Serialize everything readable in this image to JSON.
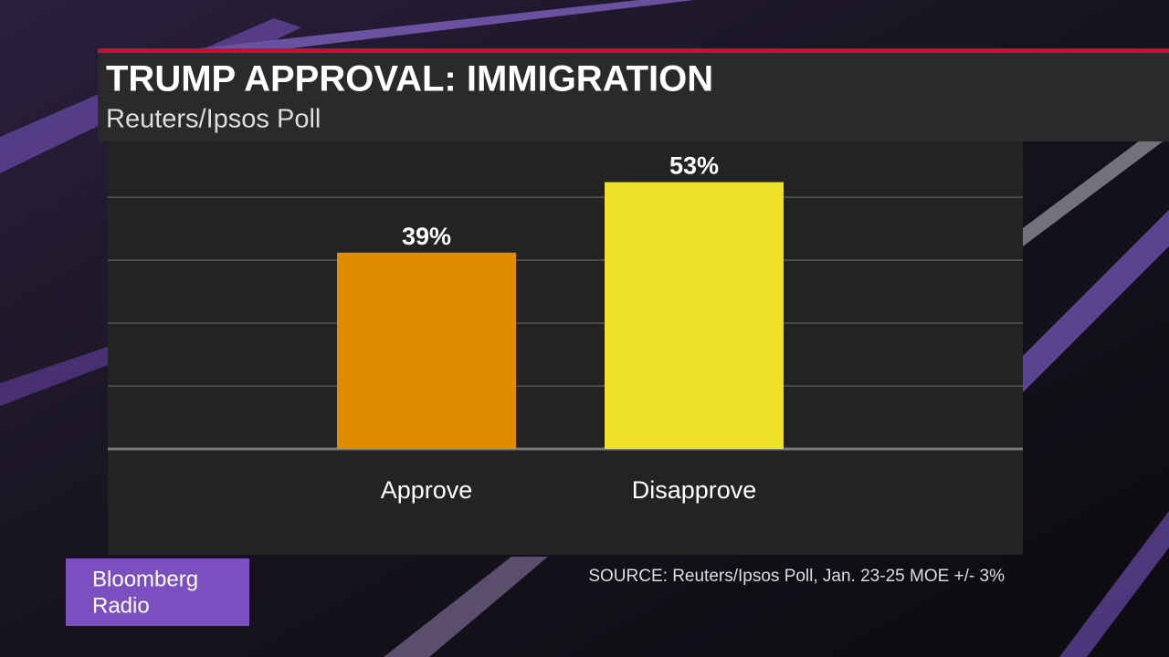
{
  "chart_data": {
    "type": "bar",
    "title": "TRUMP APPROVAL: IMMIGRATION",
    "subtitle": "Reuters/Ipsos Poll",
    "categories": [
      "Approve",
      "Disapprove"
    ],
    "values": [
      39,
      53
    ],
    "value_labels": [
      "39%",
      "53%"
    ],
    "colors": [
      "#e08c00",
      "#f0e12a"
    ],
    "ylim": [
      0,
      60
    ],
    "yticks": [
      0,
      12.5,
      25,
      37.5,
      50
    ],
    "grid": true,
    "source": "SOURCE: Reuters/Ipsos Poll, Jan. 23-25 MOE +/- 3%"
  },
  "branding": {
    "line1": "Bloomberg",
    "line2": "Radio"
  }
}
